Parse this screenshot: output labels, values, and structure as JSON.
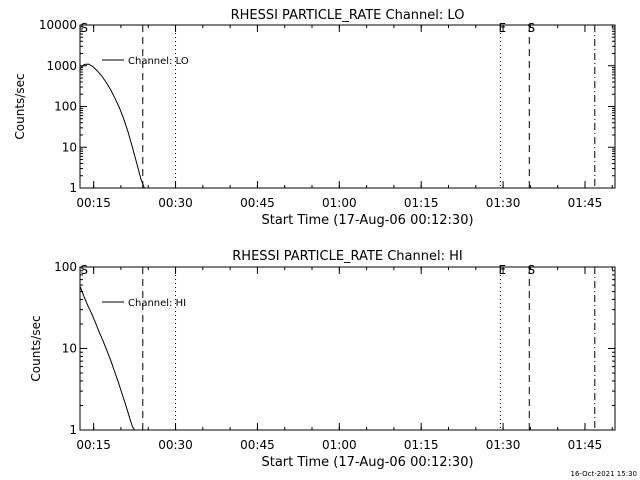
{
  "timestamp": "16-Oct-2021 15:30",
  "chart_data": [
    {
      "type": "line",
      "title": "RHESSI PARTICLE_RATE Channel: LO",
      "xlabel": "Start Time (17-Aug-06 00:12:30)",
      "ylabel": "Counts/sec",
      "y_scale": "log",
      "ylim": [
        1,
        10000
      ],
      "xlim_minutes": [
        0,
        98
      ],
      "x_ticks": [
        {
          "m": 2.5,
          "label": "00:15"
        },
        {
          "m": 17.5,
          "label": "00:30"
        },
        {
          "m": 32.5,
          "label": "00:45"
        },
        {
          "m": 47.5,
          "label": "01:00"
        },
        {
          "m": 62.5,
          "label": "01:15"
        },
        {
          "m": 77.5,
          "label": "01:30"
        },
        {
          "m": 92.5,
          "label": "01:45"
        }
      ],
      "y_ticks": [
        {
          "v": 1,
          "label": "1"
        },
        {
          "v": 10,
          "label": "10"
        },
        {
          "v": 100,
          "label": "100"
        },
        {
          "v": 1000,
          "label": "1000"
        },
        {
          "v": 10000,
          "label": "10000"
        }
      ],
      "grid": false,
      "legend": {
        "position": "top-left",
        "entries": [
          "Channel: LO"
        ]
      },
      "markers": [
        {
          "m": 0.4,
          "label": "S"
        },
        {
          "m": 77.0,
          "label": "E"
        },
        {
          "m": 82.3,
          "label": "S"
        }
      ],
      "vlines": [
        {
          "m": 11.5,
          "style": "dashed"
        },
        {
          "m": 17.5,
          "style": "dotted"
        },
        {
          "m": 77.0,
          "style": "dotted"
        },
        {
          "m": 82.3,
          "style": "dashed"
        },
        {
          "m": 94.3,
          "style": "dashdot"
        }
      ],
      "series": [
        {
          "x": [
            0,
            0.8,
            1.6,
            2.4,
            3.2,
            4.0,
            4.8,
            5.6,
            6.4,
            7.2,
            8.0,
            8.8,
            9.6,
            10.4,
            11.2,
            11.8
          ],
          "y": [
            850,
            1080,
            1100,
            940,
            740,
            560,
            390,
            260,
            160,
            95,
            50,
            24,
            10,
            4,
            1.6,
            1
          ]
        }
      ]
    },
    {
      "type": "line",
      "title": "RHESSI PARTICLE_RATE Channel: HI",
      "xlabel": "Start Time (17-Aug-06 00:12:30)",
      "ylabel": "Counts/sec",
      "y_scale": "log",
      "ylim": [
        1,
        100
      ],
      "xlim_minutes": [
        0,
        98
      ],
      "x_ticks": [
        {
          "m": 2.5,
          "label": "00:15"
        },
        {
          "m": 17.5,
          "label": "00:30"
        },
        {
          "m": 32.5,
          "label": "00:45"
        },
        {
          "m": 47.5,
          "label": "01:00"
        },
        {
          "m": 62.5,
          "label": "01:15"
        },
        {
          "m": 77.5,
          "label": "01:30"
        },
        {
          "m": 92.5,
          "label": "01:45"
        }
      ],
      "y_ticks": [
        {
          "v": 1,
          "label": "1"
        },
        {
          "v": 10,
          "label": "10"
        },
        {
          "v": 100,
          "label": "100"
        }
      ],
      "grid": false,
      "legend": {
        "position": "top-left",
        "entries": [
          "Channel: HI"
        ]
      },
      "markers": [
        {
          "m": 0.4,
          "label": "S"
        },
        {
          "m": 77.0,
          "label": "E"
        },
        {
          "m": 82.3,
          "label": "S"
        }
      ],
      "vlines": [
        {
          "m": 11.5,
          "style": "dashed"
        },
        {
          "m": 17.5,
          "style": "dotted"
        },
        {
          "m": 77.0,
          "style": "dotted"
        },
        {
          "m": 82.3,
          "style": "dashed"
        },
        {
          "m": 94.3,
          "style": "dashdot"
        }
      ],
      "series": [
        {
          "x": [
            0,
            0.7,
            1.4,
            2.1,
            2.8,
            3.5,
            4.2,
            4.9,
            5.6,
            6.3,
            7.0,
            7.7,
            8.4,
            9.1,
            9.6,
            10.0
          ],
          "y": [
            58,
            44,
            34,
            27,
            21,
            16,
            12.5,
            9.5,
            7.2,
            5.3,
            3.9,
            2.8,
            2.0,
            1.4,
            1.1,
            1
          ]
        }
      ]
    }
  ]
}
